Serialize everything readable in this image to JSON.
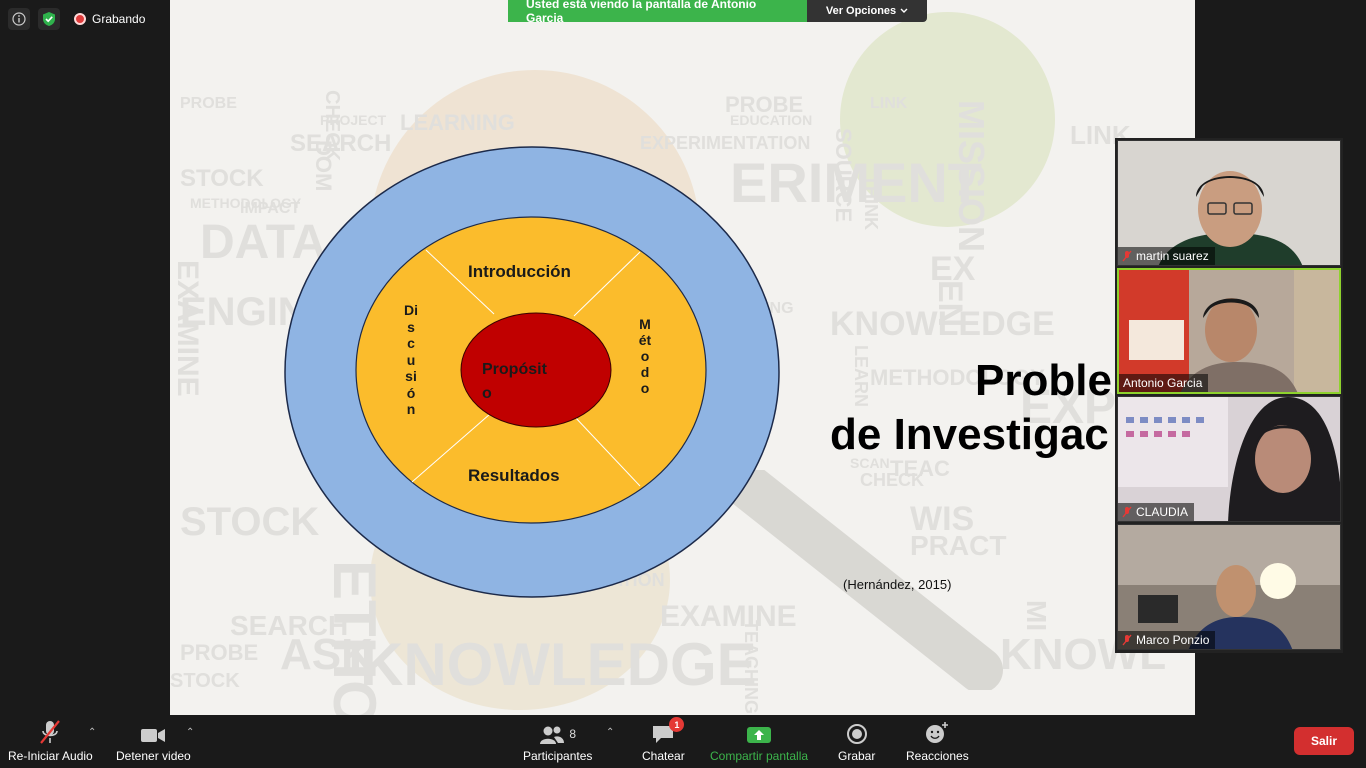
{
  "status": {
    "recording_label": "Grabando"
  },
  "share_banner": {
    "text": "Usted está viendo la pantalla de Antonio Garcia",
    "view_options": "Ver Opciones"
  },
  "slide": {
    "diagram": {
      "top_label": "Introducción",
      "bottom_label": "Resultados",
      "left_label": "Discusión",
      "right_label": "Método",
      "center_line1": "Propósit",
      "center_line2": "o"
    },
    "title_line1": "Proble",
    "title_line2": "de Investigac",
    "citation": "(Hernández, 2015)",
    "background_words": [
      "PROBE",
      "CHECK",
      "LEARNING",
      "PROBE",
      "LINK",
      "MISSION",
      "PROJECT",
      "EDUCATION",
      "SEARCH",
      "SOURCE",
      "EXPERIMENTATION",
      "STOCK",
      "ERIMENT",
      "THINK",
      "METHODOLOGY",
      "IMPACT",
      "DATA",
      "EXAMINE",
      "ENGINE",
      "TEACHING",
      "KNOWLEDGE",
      "LEARN",
      "METHODOLOGY",
      "EXPERIME",
      "STOCK",
      "DOM",
      "SEARCH",
      "EXAMINE",
      "PROBE",
      "TEACHING",
      "STOCK",
      "ASK",
      "KNOWLEDGE",
      "ETHOD",
      "PRACT",
      "WIS",
      "EXAMINATION",
      "MI",
      "KNOWL",
      "SCAN",
      "CHECK",
      "EN",
      "EX",
      "TEAC",
      "LINK"
    ]
  },
  "participants": [
    {
      "name": "martin suarez",
      "muted": true,
      "active": false
    },
    {
      "name": "Antonio Garcia",
      "muted": false,
      "active": true
    },
    {
      "name": "CLAUDIA",
      "muted": true,
      "active": false
    },
    {
      "name": "Marco Ponzio",
      "muted": true,
      "active": false
    }
  ],
  "toolbar": {
    "audio": "Re-Iniciar Audio",
    "video": "Detener video",
    "participants": "Participantes",
    "participants_count": "8",
    "chat": "Chatear",
    "chat_badge": "1",
    "share": "Compartir pantalla",
    "record": "Grabar",
    "reactions": "Reacciones",
    "leave": "Salir"
  },
  "colors": {
    "green": "#3cb44b",
    "leave_red": "#d32f2f",
    "outer_ring": "#8fb4e3",
    "middle_ring": "#fbbc2c",
    "center": "#c00000"
  }
}
